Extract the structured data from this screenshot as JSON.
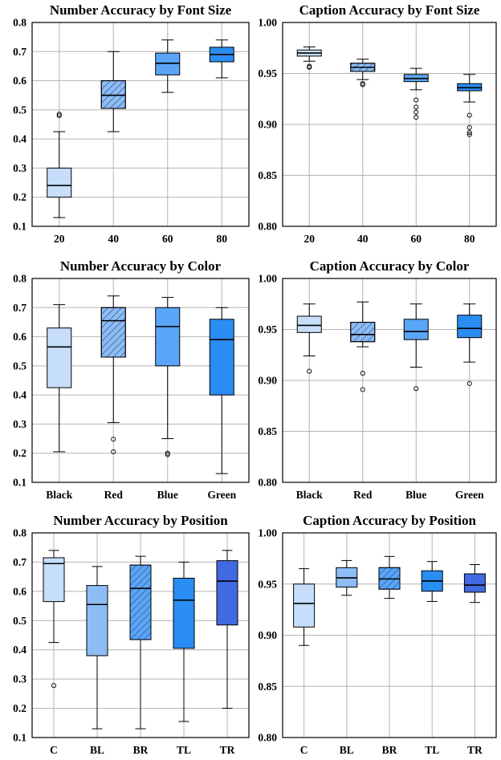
{
  "chart_data": [
    {
      "type": "box",
      "title": "Number Accuracy by Font Size",
      "ylim": [
        0.1,
        0.8
      ],
      "yticks": [
        "0.1",
        "0.2",
        "0.3",
        "0.4",
        "0.5",
        "0.6",
        "0.7",
        "0.8"
      ],
      "grid": true,
      "categories": [
        "20",
        "40",
        "60",
        "80"
      ],
      "boxes": [
        {
          "category": "20",
          "min": 0.13,
          "q1": 0.2,
          "median": 0.24,
          "q3": 0.3,
          "max": 0.425,
          "outliers": [
            0.48,
            0.485
          ],
          "color": "#c6defa",
          "hatch": false
        },
        {
          "category": "40",
          "min": 0.425,
          "q1": 0.505,
          "median": 0.55,
          "q3": 0.6,
          "max": 0.7,
          "outliers": [],
          "color": "#8ebcf4",
          "hatch": true
        },
        {
          "category": "60",
          "min": 0.56,
          "q1": 0.62,
          "median": 0.66,
          "q3": 0.695,
          "max": 0.74,
          "outliers": [],
          "color": "#5aa5f7",
          "hatch": false
        },
        {
          "category": "80",
          "min": 0.61,
          "q1": 0.665,
          "median": 0.69,
          "q3": 0.715,
          "max": 0.74,
          "outliers": [],
          "color": "#2a8df3",
          "hatch": false
        }
      ]
    },
    {
      "type": "box",
      "title": "Caption Accuracy by Font Size",
      "ylim": [
        0.8,
        1.0
      ],
      "yticks": [
        "0.80",
        "0.85",
        "0.90",
        "0.95",
        "1.00"
      ],
      "grid": true,
      "categories": [
        "20",
        "40",
        "60",
        "80"
      ],
      "boxes": [
        {
          "category": "20",
          "min": 0.962,
          "q1": 0.967,
          "median": 0.97,
          "q3": 0.973,
          "max": 0.976,
          "outliers": [
            0.956,
            0.957
          ],
          "color": "#c6defa",
          "hatch": false
        },
        {
          "category": "40",
          "min": 0.944,
          "q1": 0.952,
          "median": 0.956,
          "q3": 0.96,
          "max": 0.964,
          "outliers": [
            0.939,
            0.94
          ],
          "color": "#8ebcf4",
          "hatch": true
        },
        {
          "category": "60",
          "min": 0.934,
          "q1": 0.942,
          "median": 0.945,
          "q3": 0.949,
          "max": 0.955,
          "outliers": [
            0.924,
            0.917,
            0.912,
            0.907
          ],
          "color": "#5aa5f7",
          "hatch": false
        },
        {
          "category": "80",
          "min": 0.922,
          "q1": 0.933,
          "median": 0.936,
          "q3": 0.94,
          "max": 0.949,
          "outliers": [
            0.909,
            0.897,
            0.892,
            0.89
          ],
          "color": "#2a8df3",
          "hatch": false
        }
      ]
    },
    {
      "type": "box",
      "title": "Number Accuracy by Color",
      "ylim": [
        0.1,
        0.8
      ],
      "yticks": [
        "0.1",
        "0.2",
        "0.3",
        "0.4",
        "0.5",
        "0.6",
        "0.7",
        "0.8"
      ],
      "grid": true,
      "categories": [
        "Black",
        "Red",
        "Blue",
        "Green"
      ],
      "boxes": [
        {
          "category": "Black",
          "min": 0.205,
          "q1": 0.425,
          "median": 0.565,
          "q3": 0.63,
          "max": 0.71,
          "outliers": [],
          "color": "#c6defa",
          "hatch": false
        },
        {
          "category": "Red",
          "min": 0.305,
          "q1": 0.53,
          "median": 0.655,
          "q3": 0.7,
          "max": 0.74,
          "outliers": [
            0.248,
            0.205
          ],
          "color": "#8ebcf4",
          "hatch": true
        },
        {
          "category": "Blue",
          "min": 0.25,
          "q1": 0.5,
          "median": 0.635,
          "q3": 0.7,
          "max": 0.735,
          "outliers": [
            0.2,
            0.195
          ],
          "color": "#5aa5f7",
          "hatch": false
        },
        {
          "category": "Green",
          "min": 0.13,
          "q1": 0.4,
          "median": 0.59,
          "q3": 0.66,
          "max": 0.7,
          "outliers": [],
          "color": "#2a8df3",
          "hatch": false
        }
      ]
    },
    {
      "type": "box",
      "title": "Caption Accuracy by Color",
      "ylim": [
        0.8,
        1.0
      ],
      "yticks": [
        "0.80",
        "0.85",
        "0.90",
        "0.95",
        "1.00"
      ],
      "grid": true,
      "categories": [
        "Black",
        "Red",
        "Blue",
        "Green"
      ],
      "boxes": [
        {
          "category": "Black",
          "min": 0.924,
          "q1": 0.947,
          "median": 0.954,
          "q3": 0.963,
          "max": 0.975,
          "outliers": [
            0.909
          ],
          "color": "#c6defa",
          "hatch": false
        },
        {
          "category": "Red",
          "min": 0.933,
          "q1": 0.938,
          "median": 0.945,
          "q3": 0.957,
          "max": 0.977,
          "outliers": [
            0.907,
            0.891
          ],
          "color": "#8ebcf4",
          "hatch": true
        },
        {
          "category": "Blue",
          "min": 0.913,
          "q1": 0.94,
          "median": 0.948,
          "q3": 0.96,
          "max": 0.975,
          "outliers": [
            0.892
          ],
          "color": "#5aa5f7",
          "hatch": false
        },
        {
          "category": "Green",
          "min": 0.918,
          "q1": 0.942,
          "median": 0.951,
          "q3": 0.964,
          "max": 0.975,
          "outliers": [
            0.897
          ],
          "color": "#2a8df3",
          "hatch": false
        }
      ]
    },
    {
      "type": "box",
      "title": "Number Accuracy by Position",
      "ylim": [
        0.1,
        0.8
      ],
      "yticks": [
        "0.1",
        "0.2",
        "0.3",
        "0.4",
        "0.5",
        "0.6",
        "0.7",
        "0.8"
      ],
      "grid": true,
      "categories": [
        "C",
        "BL",
        "BR",
        "TL",
        "TR"
      ],
      "boxes": [
        {
          "category": "C",
          "min": 0.425,
          "q1": 0.565,
          "median": 0.695,
          "q3": 0.715,
          "max": 0.74,
          "outliers": [
            0.278
          ],
          "color": "#c6defa",
          "hatch": false
        },
        {
          "category": "BL",
          "min": 0.13,
          "q1": 0.38,
          "median": 0.555,
          "q3": 0.62,
          "max": 0.685,
          "outliers": [],
          "color": "#8ebcf4",
          "hatch": false
        },
        {
          "category": "BR",
          "min": 0.13,
          "q1": 0.435,
          "median": 0.61,
          "q3": 0.69,
          "max": 0.72,
          "outliers": [],
          "color": "#5aa5f7",
          "hatch": true
        },
        {
          "category": "TL",
          "min": 0.155,
          "q1": 0.405,
          "median": 0.57,
          "q3": 0.645,
          "max": 0.7,
          "outliers": [],
          "color": "#2a8df3",
          "hatch": false
        },
        {
          "category": "TR",
          "min": 0.2,
          "q1": 0.485,
          "median": 0.635,
          "q3": 0.705,
          "max": 0.74,
          "outliers": [],
          "color": "#4169e1",
          "hatch": false
        }
      ]
    },
    {
      "type": "box",
      "title": "Caption Accuracy by Position",
      "ylim": [
        0.8,
        1.0
      ],
      "yticks": [
        "0.80",
        "0.85",
        "0.90",
        "0.95",
        "1.00"
      ],
      "grid": true,
      "categories": [
        "C",
        "BL",
        "BR",
        "TL",
        "TR"
      ],
      "boxes": [
        {
          "category": "C",
          "min": 0.89,
          "q1": 0.908,
          "median": 0.931,
          "q3": 0.95,
          "max": 0.965,
          "outliers": [],
          "color": "#c6defa",
          "hatch": false
        },
        {
          "category": "BL",
          "min": 0.939,
          "q1": 0.947,
          "median": 0.956,
          "q3": 0.966,
          "max": 0.973,
          "outliers": [],
          "color": "#8ebcf4",
          "hatch": false
        },
        {
          "category": "BR",
          "min": 0.936,
          "q1": 0.945,
          "median": 0.955,
          "q3": 0.966,
          "max": 0.977,
          "outliers": [],
          "color": "#5aa5f7",
          "hatch": true
        },
        {
          "category": "TL",
          "min": 0.933,
          "q1": 0.943,
          "median": 0.953,
          "q3": 0.963,
          "max": 0.972,
          "outliers": [],
          "color": "#2a8df3",
          "hatch": false
        },
        {
          "category": "TR",
          "min": 0.932,
          "q1": 0.942,
          "median": 0.949,
          "q3": 0.96,
          "max": 0.969,
          "outliers": [],
          "color": "#4169e1",
          "hatch": false
        }
      ]
    }
  ]
}
